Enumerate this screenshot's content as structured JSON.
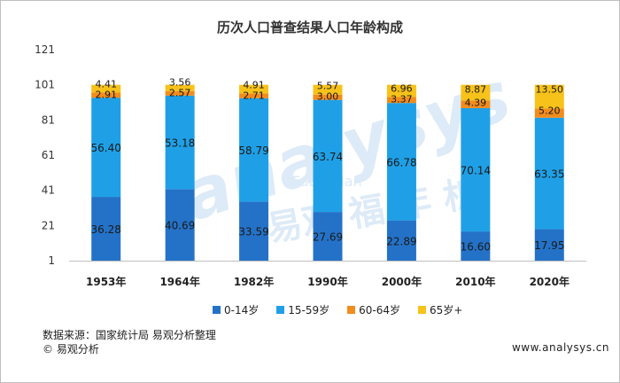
{
  "chart_data": {
    "type": "bar",
    "stacked": true,
    "title": "历次人口普查结果人口年龄构成",
    "categories": [
      "1953年",
      "1964年",
      "1982年",
      "1990年",
      "2000年",
      "2010年",
      "2020年"
    ],
    "series": [
      {
        "name": "0-14岁",
        "color": "#2472c8",
        "values": [
          36.28,
          40.69,
          33.59,
          27.69,
          22.89,
          16.6,
          17.95
        ]
      },
      {
        "name": "15-59岁",
        "color": "#1fa0e6",
        "values": [
          56.4,
          53.18,
          58.79,
          63.74,
          66.78,
          70.14,
          63.35
        ]
      },
      {
        "name": "60-64岁",
        "color": "#f28c1c",
        "values": [
          2.91,
          2.57,
          2.71,
          3.0,
          3.37,
          4.39,
          5.2
        ]
      },
      {
        "name": "65岁+",
        "color": "#f7c21a",
        "values": [
          4.41,
          3.56,
          4.91,
          5.57,
          6.96,
          8.87,
          13.5
        ]
      }
    ],
    "labels": [
      [
        "36.28",
        "40.69",
        "33.59",
        "27.69",
        "22.89",
        "16.60",
        "17.95"
      ],
      [
        "56.40",
        "53.18",
        "58.79",
        "63.74",
        "66.78",
        "70.14",
        "63.35"
      ],
      [
        "2.91",
        "2.57",
        "2.71",
        "3.00",
        "3.37",
        "4.39",
        "5.20"
      ],
      [
        "4.41",
        "3.56",
        "4.91",
        "5.57",
        "6.96",
        "8.87",
        "13.50"
      ]
    ],
    "yticks": [
      "1",
      "21",
      "41",
      "61",
      "81",
      "101",
      "121"
    ],
    "ylim": [
      1,
      121
    ],
    "grid": false,
    "legend": "bottom"
  },
  "footer": {
    "source": "数据来源：国家统计局   易观分析整理",
    "copyright": "© 易观分析",
    "site": "www.analysys.cn"
  },
  "watermark": {
    "brand": "analysys",
    "pinyin": "FuLu Nian",
    "chinese": "易观 福 年 析"
  }
}
